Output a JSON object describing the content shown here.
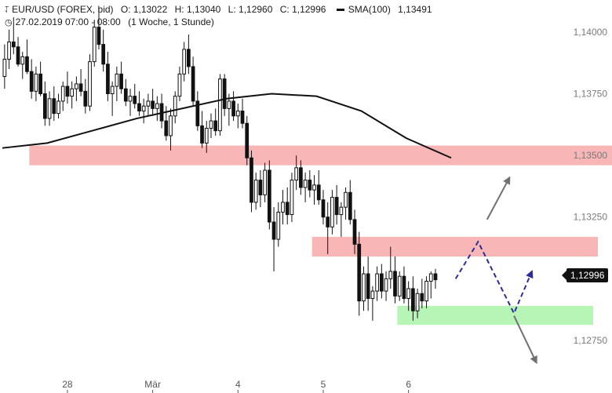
{
  "header": {
    "symbol": "EUR/USD (FOREX, bid)",
    "open": "O: 1,13022",
    "high": "H: 1,13040",
    "low": "L: 1,12960",
    "close": "C: 1,12996",
    "sma_label": "SMA(100)",
    "sma_value": "1,13491",
    "timestamp": "27.02.2019 07:00 - 08:00",
    "interval": "(1 Woche, 1 Stunde)",
    "icons": [
      "candlestick-chart-icon",
      "clock-icon"
    ]
  },
  "current_price": "1,12996",
  "colors": {
    "resistance_zone": "#f9b6b6",
    "support_zone": "#b7f5b7",
    "sma_line": "#111111",
    "candle_up": "#ffffff",
    "candle_down": "#111111",
    "scenario_path": "#2d2d9a",
    "scenario_arrows": "#707070"
  },
  "chart_data": {
    "type": "candlestick",
    "interval": "1 Stunde",
    "y_tick_labels": [
      "1,14000",
      "1,13750",
      "1,13500",
      "1,13250",
      "1,12750"
    ],
    "y_ticks": [
      1.14,
      1.1375,
      1.135,
      1.1325,
      1.1275
    ],
    "ylim": [
      1.1261,
      1.1413
    ],
    "x_tick_labels": [
      "28",
      "Mär",
      "4",
      "5",
      "6"
    ],
    "x_ticks_bar_index": [
      14,
      33,
      52,
      71,
      90
    ],
    "bars": [
      [
        1.1382,
        1.1395,
        1.1377,
        1.1389
      ],
      [
        1.1389,
        1.1401,
        1.1385,
        1.1396
      ],
      [
        1.1396,
        1.1406,
        1.1391,
        1.1394
      ],
      [
        1.1394,
        1.1398,
        1.1386,
        1.1387
      ],
      [
        1.1387,
        1.1392,
        1.1381,
        1.139
      ],
      [
        1.139,
        1.1397,
        1.1383,
        1.1384
      ],
      [
        1.1384,
        1.1389,
        1.1373,
        1.1376
      ],
      [
        1.1376,
        1.1386,
        1.1372,
        1.1383
      ],
      [
        1.1383,
        1.1388,
        1.1374,
        1.1375
      ],
      [
        1.1375,
        1.138,
        1.1362,
        1.1365
      ],
      [
        1.1365,
        1.1376,
        1.1362,
        1.1373
      ],
      [
        1.1373,
        1.1378,
        1.1364,
        1.1367
      ],
      [
        1.1367,
        1.1375,
        1.1365,
        1.1372
      ],
      [
        1.1372,
        1.138,
        1.1368,
        1.1378
      ],
      [
        1.1378,
        1.1384,
        1.1371,
        1.1374
      ],
      [
        1.1374,
        1.138,
        1.1369,
        1.1377
      ],
      [
        1.1377,
        1.1382,
        1.1372,
        1.1379
      ],
      [
        1.1379,
        1.1385,
        1.1374,
        1.1376
      ],
      [
        1.1376,
        1.1381,
        1.1367,
        1.137
      ],
      [
        1.137,
        1.1391,
        1.1368,
        1.1388
      ],
      [
        1.1388,
        1.1405,
        1.1386,
        1.1402
      ],
      [
        1.1402,
        1.141,
        1.1393,
        1.1395
      ],
      [
        1.1395,
        1.1401,
        1.1384,
        1.1387
      ],
      [
        1.1387,
        1.1392,
        1.1372,
        1.1375
      ],
      [
        1.1375,
        1.138,
        1.1366,
        1.1378
      ],
      [
        1.1378,
        1.1386,
        1.1372,
        1.1383
      ],
      [
        1.1383,
        1.1388,
        1.1375,
        1.1377
      ],
      [
        1.1377,
        1.1381,
        1.137,
        1.1372
      ],
      [
        1.1372,
        1.1377,
        1.1366,
        1.1374
      ],
      [
        1.1374,
        1.1379,
        1.1369,
        1.1371
      ],
      [
        1.1371,
        1.1376,
        1.1366,
        1.1368
      ],
      [
        1.1368,
        1.1373,
        1.1363,
        1.137
      ],
      [
        1.137,
        1.1375,
        1.1366,
        1.1372
      ],
      [
        1.1372,
        1.1377,
        1.1366,
        1.1369
      ],
      [
        1.1369,
        1.1374,
        1.1364,
        1.1371
      ],
      [
        1.1371,
        1.1375,
        1.1361,
        1.1364
      ],
      [
        1.1364,
        1.137,
        1.1356,
        1.1358
      ],
      [
        1.1358,
        1.1369,
        1.1352,
        1.1366
      ],
      [
        1.1366,
        1.1376,
        1.1363,
        1.1374
      ],
      [
        1.1374,
        1.1386,
        1.1372,
        1.1383
      ],
      [
        1.1383,
        1.1396,
        1.138,
        1.1393
      ],
      [
        1.1393,
        1.1399,
        1.1383,
        1.1386
      ],
      [
        1.1386,
        1.139,
        1.137,
        1.1372
      ],
      [
        1.1372,
        1.1376,
        1.136,
        1.1362
      ],
      [
        1.1362,
        1.1368,
        1.1353,
        1.1355
      ],
      [
        1.1355,
        1.1364,
        1.1351,
        1.1361
      ],
      [
        1.1361,
        1.1367,
        1.1357,
        1.1364
      ],
      [
        1.1364,
        1.1369,
        1.1358,
        1.136
      ],
      [
        1.136,
        1.1383,
        1.1358,
        1.1381
      ],
      [
        1.1381,
        1.1383,
        1.1366,
        1.1369
      ],
      [
        1.1369,
        1.1375,
        1.1362,
        1.1372
      ],
      [
        1.1372,
        1.1376,
        1.1364,
        1.1366
      ],
      [
        1.1366,
        1.1371,
        1.1361,
        1.1368
      ],
      [
        1.1368,
        1.1373,
        1.1361,
        1.1363
      ],
      [
        1.1363,
        1.1366,
        1.1346,
        1.1349
      ],
      [
        1.1349,
        1.1352,
        1.1327,
        1.1331
      ],
      [
        1.1331,
        1.1343,
        1.1328,
        1.134
      ],
      [
        1.134,
        1.1344,
        1.1329,
        1.1334
      ],
      [
        1.1334,
        1.1347,
        1.1331,
        1.1344
      ],
      [
        1.1344,
        1.1348,
        1.132,
        1.1323
      ],
      [
        1.1323,
        1.1329,
        1.1303,
        1.1316
      ],
      [
        1.1316,
        1.1331,
        1.1313,
        1.1327
      ],
      [
        1.1327,
        1.1336,
        1.1322,
        1.1331
      ],
      [
        1.1331,
        1.1337,
        1.1322,
        1.1326
      ],
      [
        1.1326,
        1.1343,
        1.1323,
        1.134
      ],
      [
        1.134,
        1.135,
        1.1336,
        1.1345
      ],
      [
        1.1345,
        1.1348,
        1.1334,
        1.1337
      ],
      [
        1.1337,
        1.1343,
        1.1331,
        1.134
      ],
      [
        1.134,
        1.1344,
        1.1333,
        1.1336
      ],
      [
        1.1336,
        1.1342,
        1.133,
        1.1338
      ],
      [
        1.1338,
        1.1344,
        1.133,
        1.1332
      ],
      [
        1.1332,
        1.1336,
        1.1322,
        1.1325
      ],
      [
        1.1325,
        1.1331,
        1.131,
        1.1321
      ],
      [
        1.1321,
        1.1336,
        1.1318,
        1.1333
      ],
      [
        1.1333,
        1.1338,
        1.1322,
        1.1326
      ],
      [
        1.1326,
        1.1331,
        1.1317,
        1.1329
      ],
      [
        1.1329,
        1.1337,
        1.1324,
        1.1335
      ],
      [
        1.1335,
        1.134,
        1.1322,
        1.1324
      ],
      [
        1.1324,
        1.1328,
        1.131,
        1.1314
      ],
      [
        1.1314,
        1.1319,
        1.1285,
        1.1291
      ],
      [
        1.1291,
        1.1305,
        1.1287,
        1.1302
      ],
      [
        1.1302,
        1.1309,
        1.1287,
        1.1292
      ],
      [
        1.1292,
        1.1297,
        1.1283,
        1.1295
      ],
      [
        1.1295,
        1.1305,
        1.1291,
        1.1302
      ],
      [
        1.1302,
        1.1306,
        1.1292,
        1.1295
      ],
      [
        1.1295,
        1.1303,
        1.1291,
        1.13
      ],
      [
        1.13,
        1.1313,
        1.1296,
        1.1303
      ],
      [
        1.1303,
        1.1309,
        1.129,
        1.1293
      ],
      [
        1.1293,
        1.1303,
        1.1291,
        1.1301
      ],
      [
        1.1301,
        1.1305,
        1.129,
        1.1292
      ],
      [
        1.1292,
        1.1299,
        1.1287,
        1.1296
      ],
      [
        1.1296,
        1.1301,
        1.1283,
        1.1287
      ],
      [
        1.1287,
        1.1296,
        1.1284,
        1.1294
      ],
      [
        1.1294,
        1.13,
        1.1288,
        1.1291
      ],
      [
        1.1291,
        1.1301,
        1.1288,
        1.1299
      ],
      [
        1.1299,
        1.1303,
        1.1292,
        1.1302
      ],
      [
        1.1302,
        1.1304,
        1.1296,
        1.12996
      ]
    ],
    "sma100": [
      [
        0,
        1.1353
      ],
      [
        10,
        1.1355
      ],
      [
        20,
        1.136
      ],
      [
        30,
        1.1365
      ],
      [
        40,
        1.1369
      ],
      [
        50,
        1.1373
      ],
      [
        60,
        1.1375
      ],
      [
        70,
        1.1374
      ],
      [
        80,
        1.1368
      ],
      [
        90,
        1.1357
      ],
      [
        100,
        1.1349
      ]
    ],
    "zones": [
      {
        "kind": "resistance",
        "from_bar": 6,
        "to_bar": "right-edge",
        "low": 1.1346,
        "high": 1.1354
      },
      {
        "kind": "resistance",
        "from_bar": 69,
        "to_bar": "right-edge",
        "low": 1.1309,
        "high": 1.1317
      },
      {
        "kind": "support",
        "from_bar": 88,
        "to_bar": "right-edge",
        "low": 1.12813,
        "high": 1.1289
      }
    ],
    "scenarios": [
      {
        "kind": "dashed-path",
        "points": [
          [
            101,
            1.13
          ],
          [
            106,
            1.1315
          ],
          [
            114,
            1.1286
          ],
          [
            118,
            1.1303
          ]
        ]
      },
      {
        "kind": "arrow",
        "points": [
          [
            108,
            1.1324
          ],
          [
            113,
            1.1341
          ]
        ]
      },
      {
        "kind": "arrow",
        "points": [
          [
            114,
            1.1285
          ],
          [
            119,
            1.1266
          ]
        ]
      }
    ]
  }
}
